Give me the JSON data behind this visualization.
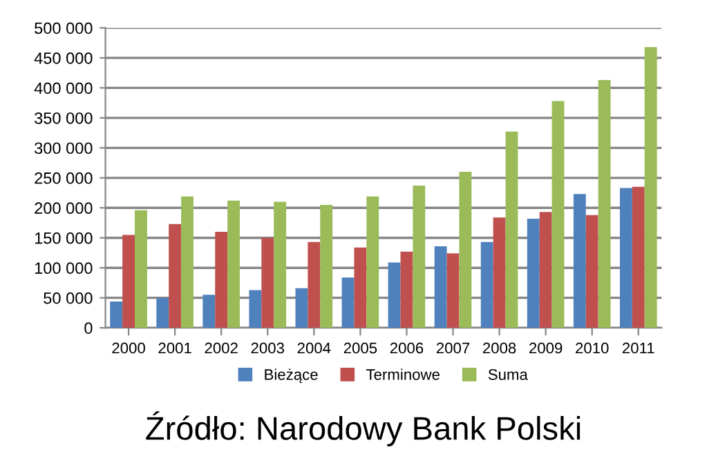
{
  "chart_data": {
    "type": "bar",
    "categories": [
      "2000",
      "2001",
      "2002",
      "2003",
      "2004",
      "2005",
      "2006",
      "2007",
      "2008",
      "2009",
      "2010",
      "2011"
    ],
    "series": [
      {
        "name": "Bieżące",
        "color": "#4f81bd",
        "values": [
          44000,
          50000,
          55000,
          63000,
          66000,
          84000,
          109000,
          136000,
          143000,
          182000,
          223000,
          233000
        ]
      },
      {
        "name": "Terminowe",
        "color": "#c0504d",
        "values": [
          155000,
          173000,
          160000,
          150000,
          143000,
          134000,
          127000,
          124000,
          184000,
          193000,
          188000,
          235000
        ]
      },
      {
        "name": "Suma",
        "color": "#9bbb59",
        "values": [
          196000,
          219000,
          212000,
          210000,
          205000,
          219000,
          237000,
          260000,
          327000,
          378000,
          413000,
          468000
        ]
      }
    ],
    "ylim": [
      0,
      500000
    ],
    "yticks": [
      {
        "value": 0,
        "label": "0"
      },
      {
        "value": 50000,
        "label": "50 000"
      },
      {
        "value": 100000,
        "label": "100 000"
      },
      {
        "value": 150000,
        "label": "150 000"
      },
      {
        "value": 200000,
        "label": "200 000"
      },
      {
        "value": 250000,
        "label": "250 000"
      },
      {
        "value": 300000,
        "label": "300 000"
      },
      {
        "value": 350000,
        "label": "350 000"
      },
      {
        "value": 400000,
        "label": "400 000"
      },
      {
        "value": 450000,
        "label": "450 000"
      },
      {
        "value": 500000,
        "label": "500 000"
      }
    ],
    "grid": "y",
    "legend": "bottom",
    "annotations": [
      "Źródło: Narodowy Bank Polski"
    ]
  }
}
